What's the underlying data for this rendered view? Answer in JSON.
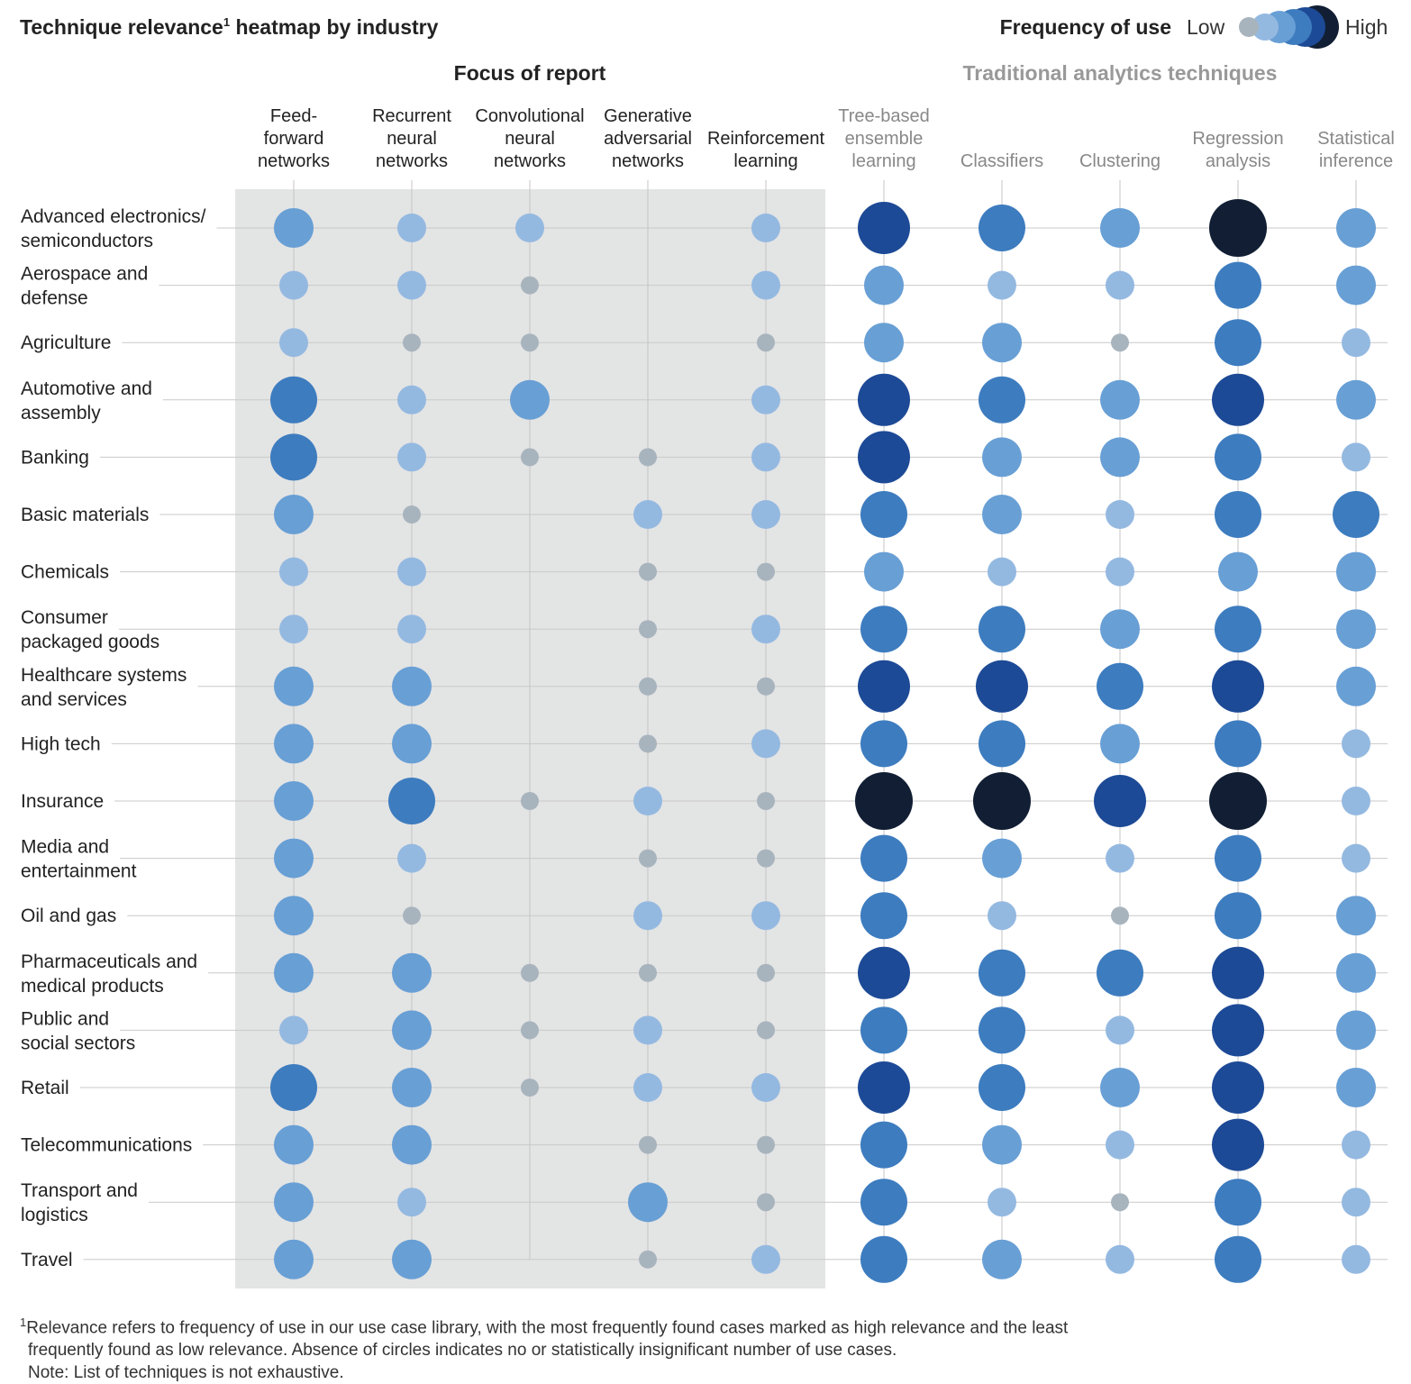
{
  "title": "Technique relevance",
  "title_sup": "1",
  "title_suffix": " heatmap by industry",
  "legend": {
    "title": "Frequency of use",
    "low_label": "Low",
    "high_label": "High",
    "levels": [
      1,
      2,
      3,
      4,
      5,
      6
    ],
    "colors": [
      "#a8b4bd",
      "#94b9e1",
      "#689fd5",
      "#3d7cbf",
      "#1d4a96",
      "#111e33"
    ]
  },
  "footnote": {
    "sup": "1",
    "line1": "Relevance refers to frequency of use in our use case library, with the most frequently found cases marked as high relevance and the least",
    "line2": "frequently found as low relevance. Absence of circles indicates no or statistically insignificant number of use cases.",
    "note": "Note: List of techniques is not exhaustive."
  },
  "chart_data": {
    "type": "heatmap",
    "title": "Technique relevance heatmap by industry",
    "value_scale": "1 = Low … 6 = High (frequency of use); 0 = absence of circle",
    "groups": [
      {
        "name": "Focus of report",
        "columns": [
          0,
          1,
          2,
          3,
          4
        ]
      },
      {
        "name": "Traditional analytics techniques",
        "columns": [
          5,
          6,
          7,
          8,
          9
        ]
      }
    ],
    "columns": [
      {
        "label_lines": [
          "Feed-",
          "forward",
          "networks"
        ],
        "label": "Feed-forward networks"
      },
      {
        "label_lines": [
          "Recurrent",
          "neural",
          "networks"
        ],
        "label": "Recurrent neural networks"
      },
      {
        "label_lines": [
          "Convolutional",
          "neural",
          "networks"
        ],
        "label": "Convolutional neural networks"
      },
      {
        "label_lines": [
          "Generative",
          "adversarial",
          "networks"
        ],
        "label": "Generative adversarial networks"
      },
      {
        "label_lines": [
          "Reinforcement",
          "learning"
        ],
        "label": "Reinforcement learning"
      },
      {
        "label_lines": [
          "Tree-based",
          "ensemble",
          "learning"
        ],
        "label": "Tree-based ensemble learning"
      },
      {
        "label_lines": [
          "Classifiers"
        ],
        "label": "Classifiers"
      },
      {
        "label_lines": [
          "Clustering"
        ],
        "label": "Clustering"
      },
      {
        "label_lines": [
          "Regression",
          "analysis"
        ],
        "label": "Regression analysis"
      },
      {
        "label_lines": [
          "Statistical",
          "inference"
        ],
        "label": "Statistical inference"
      }
    ],
    "rows": [
      {
        "label_lines": [
          "Advanced electronics/",
          "semiconductors"
        ],
        "values": [
          3,
          2,
          2,
          0,
          2,
          5,
          4,
          3,
          6,
          3
        ]
      },
      {
        "label_lines": [
          "Aerospace and",
          "defense"
        ],
        "values": [
          2,
          2,
          1,
          0,
          2,
          3,
          2,
          2,
          4,
          3
        ]
      },
      {
        "label_lines": [
          "Agriculture"
        ],
        "values": [
          2,
          1,
          1,
          0,
          1,
          3,
          3,
          1,
          4,
          2
        ]
      },
      {
        "label_lines": [
          "Automotive and",
          "assembly"
        ],
        "values": [
          4,
          2,
          3,
          0,
          2,
          5,
          4,
          3,
          5,
          3
        ]
      },
      {
        "label_lines": [
          "Banking"
        ],
        "values": [
          4,
          2,
          1,
          1,
          2,
          5,
          3,
          3,
          4,
          2
        ]
      },
      {
        "label_lines": [
          "Basic materials"
        ],
        "values": [
          3,
          1,
          0,
          2,
          2,
          4,
          3,
          2,
          4,
          4
        ]
      },
      {
        "label_lines": [
          "Chemicals"
        ],
        "values": [
          2,
          2,
          0,
          1,
          1,
          3,
          2,
          2,
          3,
          3
        ]
      },
      {
        "label_lines": [
          "Consumer",
          "packaged goods"
        ],
        "values": [
          2,
          2,
          0,
          1,
          2,
          4,
          4,
          3,
          4,
          3
        ]
      },
      {
        "label_lines": [
          "Healthcare systems",
          "and services"
        ],
        "values": [
          3,
          3,
          0,
          1,
          1,
          5,
          5,
          4,
          5,
          3
        ]
      },
      {
        "label_lines": [
          "High tech"
        ],
        "values": [
          3,
          3,
          0,
          1,
          2,
          4,
          4,
          3,
          4,
          2
        ]
      },
      {
        "label_lines": [
          "Insurance"
        ],
        "values": [
          3,
          4,
          1,
          2,
          1,
          6,
          6,
          5,
          6,
          2
        ]
      },
      {
        "label_lines": [
          "Media and",
          "entertainment"
        ],
        "values": [
          3,
          2,
          0,
          1,
          1,
          4,
          3,
          2,
          4,
          2
        ]
      },
      {
        "label_lines": [
          "Oil and gas"
        ],
        "values": [
          3,
          1,
          0,
          2,
          2,
          4,
          2,
          1,
          4,
          3
        ]
      },
      {
        "label_lines": [
          "Pharmaceuticals and",
          "medical products"
        ],
        "values": [
          3,
          3,
          1,
          1,
          1,
          5,
          4,
          4,
          5,
          3
        ]
      },
      {
        "label_lines": [
          "Public and",
          "social sectors"
        ],
        "values": [
          2,
          3,
          1,
          2,
          1,
          4,
          4,
          2,
          5,
          3
        ]
      },
      {
        "label_lines": [
          "Retail"
        ],
        "values": [
          4,
          3,
          1,
          2,
          2,
          5,
          4,
          3,
          5,
          3
        ]
      },
      {
        "label_lines": [
          "Telecommunications"
        ],
        "values": [
          3,
          3,
          0,
          1,
          1,
          4,
          3,
          2,
          5,
          2
        ]
      },
      {
        "label_lines": [
          "Transport and",
          "logistics"
        ],
        "values": [
          3,
          2,
          0,
          3,
          1,
          4,
          2,
          1,
          4,
          2
        ]
      },
      {
        "label_lines": [
          "Travel"
        ],
        "values": [
          3,
          3,
          0,
          1,
          2,
          4,
          3,
          2,
          4,
          2
        ]
      }
    ]
  }
}
